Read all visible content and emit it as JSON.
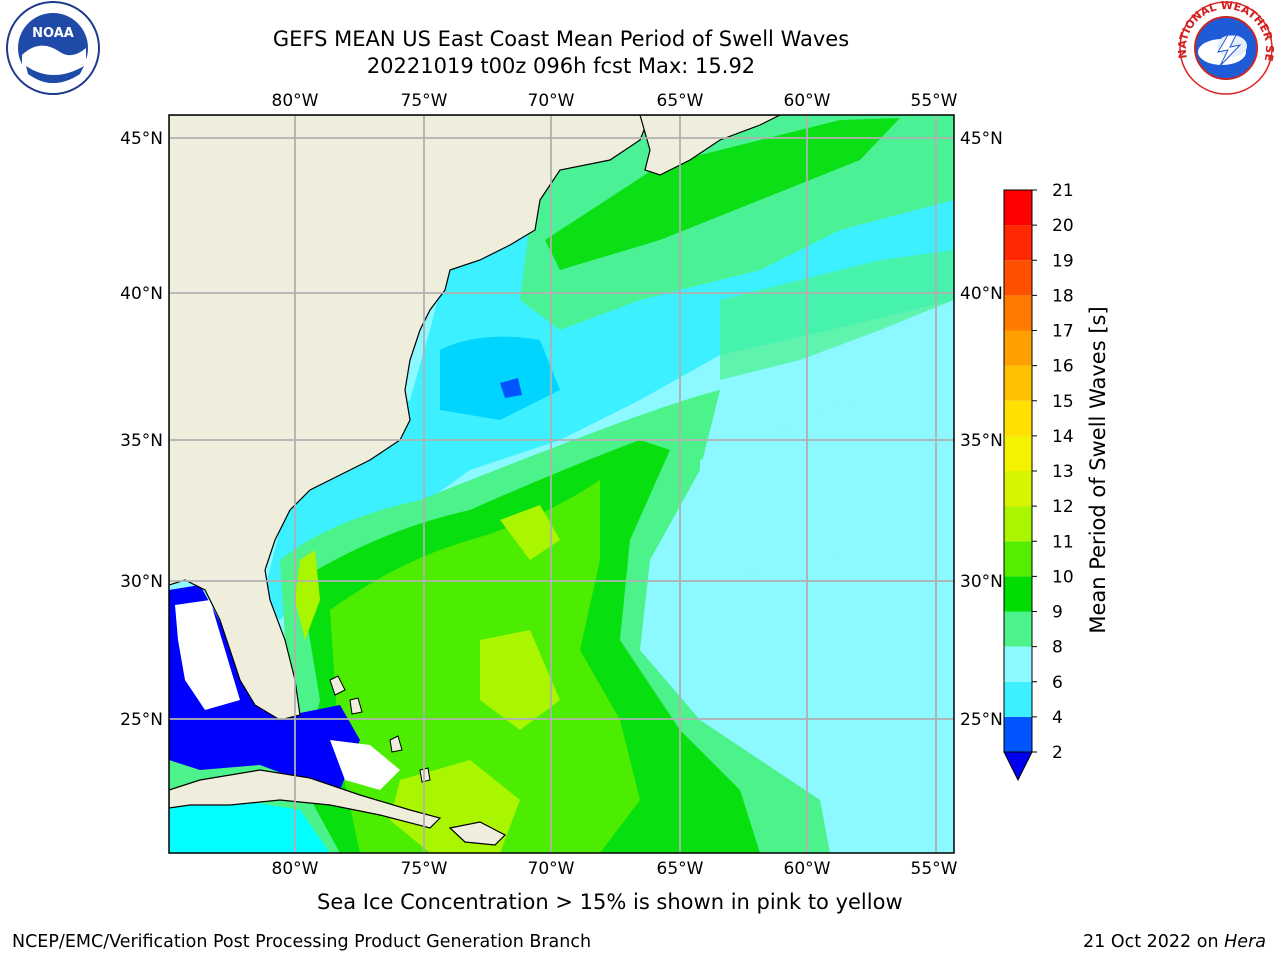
{
  "title": "GEFS MEAN US East Coast Mean Period of Swell Waves",
  "subtitle": "20221019 t00z 096h fcst   Max: 15.92",
  "footer_note": "Sea Ice Concentration > 15% is shown in pink to yellow",
  "credit": "NCEP/EMC/Verification Post Processing Product Generation Branch",
  "date_text": "21 Oct 2022 on",
  "host": "Hera",
  "logos": {
    "left": "NOAA",
    "right": "NATIONAL WEATHER SERVICE"
  },
  "map": {
    "lon_labels": [
      "80°W",
      "75°W",
      "70°W",
      "65°W",
      "60°W",
      "55°W"
    ],
    "lat_labels": [
      "45°N",
      "40°N",
      "35°N",
      "30°N",
      "25°N"
    ],
    "lon_range": [
      -84.9,
      -54.4
    ],
    "lat_range": [
      20.4,
      45.8
    ],
    "colors": {
      "land": "#efeedd",
      "grid": "#b0b0b0",
      "ice_fill": "#0000ff"
    }
  },
  "colorbar": {
    "label": "Mean Period of Swell Waves [s]",
    "ticks": [
      "2",
      "4",
      "6",
      "8",
      "9",
      "10",
      "11",
      "12",
      "13",
      "14",
      "15",
      "16",
      "17",
      "18",
      "19",
      "20",
      "21"
    ],
    "colors": [
      "#0055ff",
      "#00d5ff",
      "#3cf0ff",
      "#8cf8ff",
      "#4cf28a",
      "#00dd00",
      "#55ee00",
      "#aaf500",
      "#d7f500",
      "#f4f200",
      "#ffe000",
      "#ffc000",
      "#ffa000",
      "#ff7a00",
      "#ff5000",
      "#ff2800",
      "#ff0000"
    ],
    "under_color": "#0000ee"
  }
}
